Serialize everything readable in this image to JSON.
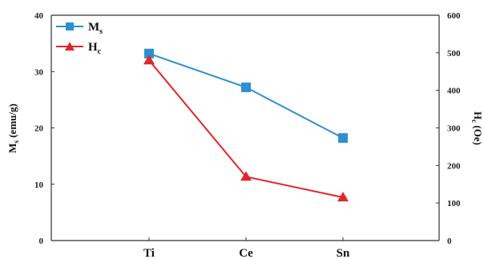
{
  "chart_data": {
    "type": "line",
    "categories": [
      "Ti",
      "Ce",
      "Sn"
    ],
    "series": [
      {
        "name": "M",
        "name_sub": "s",
        "axis": "left",
        "color": "#2f8fd0",
        "marker": "square",
        "values": [
          33.2,
          27.2,
          18.2
        ]
      },
      {
        "name": "H",
        "name_sub": "c",
        "axis": "right",
        "color": "#e0262c",
        "marker": "triangle",
        "values": [
          480,
          170,
          115
        ]
      }
    ],
    "ylabel_left": {
      "main": "M",
      "sub": "s",
      "rest": " (emu/g)"
    },
    "ylabel_right": {
      "main": "H",
      "sub": "c",
      "rest": " (Oe)"
    },
    "ylim_left": [
      0,
      40
    ],
    "ylim_right": [
      0,
      600
    ],
    "yticks_left": [
      "0",
      "10",
      "20",
      "30",
      "40"
    ],
    "yticks_right": [
      "0",
      "100",
      "200",
      "300",
      "400",
      "500",
      "600"
    ],
    "grid": false,
    "legend_position": "top-left"
  }
}
